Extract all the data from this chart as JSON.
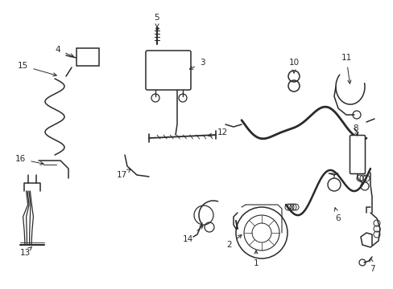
{
  "bg_color": "#ffffff",
  "lc": "#2a2a2a",
  "lw": 1.1,
  "fig_w": 4.89,
  "fig_h": 3.6,
  "dpi": 100
}
